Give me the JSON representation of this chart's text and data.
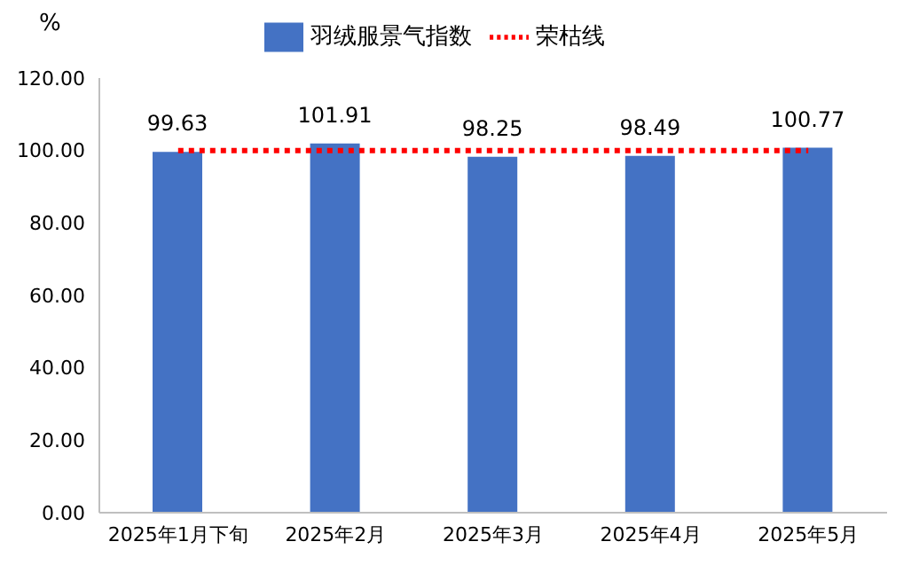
{
  "chart_data": {
    "type": "bar",
    "ylabel": "%",
    "categories": [
      "2025年1月下旬",
      "2025年2月",
      "2025年3月",
      "2025年4月",
      "2025年5月"
    ],
    "series": [
      {
        "name": "羽绒服景气指数",
        "color": "#4472c4",
        "values": [
          99.63,
          101.91,
          98.25,
          98.49,
          100.77
        ],
        "value_labels": [
          "99.63",
          "101.91",
          "98.25",
          "98.49",
          "100.77"
        ]
      },
      {
        "name": "荣枯线",
        "type": "line",
        "color": "#ff0000",
        "values": [
          100,
          100,
          100,
          100,
          100
        ],
        "line_style": "dotted",
        "marker": "none"
      }
    ],
    "ylim": [
      0,
      120
    ],
    "yticks": [
      {
        "value": 0,
        "label": "0.00"
      },
      {
        "value": 20,
        "label": "20.00"
      },
      {
        "value": 40,
        "label": "40.00"
      },
      {
        "value": 60,
        "label": "60.00"
      },
      {
        "value": 80,
        "label": "80.00"
      },
      {
        "value": 100,
        "label": "100.00"
      },
      {
        "value": 120,
        "label": "120.00"
      }
    ],
    "grid": false,
    "legend": "top"
  }
}
